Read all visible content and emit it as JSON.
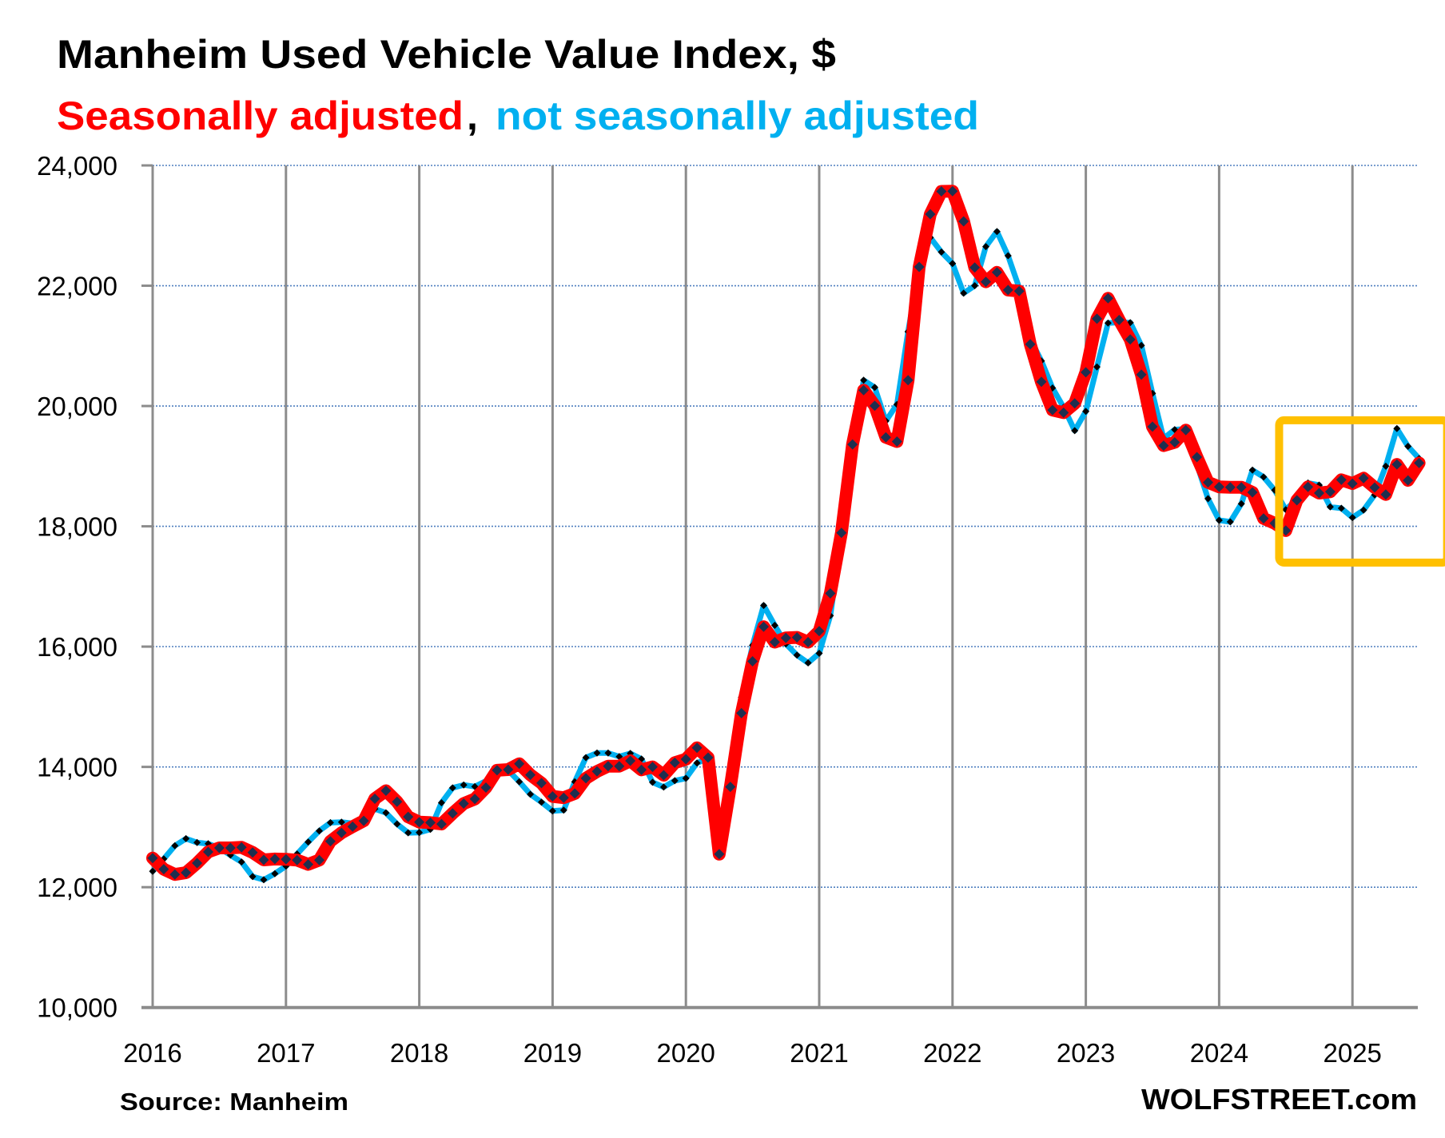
{
  "chart_data": {
    "type": "line",
    "title": "Manheim Used Vehicle Value Index, $",
    "subtitle": {
      "part1": "Seasonally adjusted",
      "separator": ",",
      "part2": "not seasonally adjusted"
    },
    "source": "Source: Manheim",
    "watermark": "WOLFSTREET.com",
    "xlabel": "",
    "ylabel": "",
    "ylim": [
      10000,
      24000
    ],
    "xlim": [
      2016,
      2025.6
    ],
    "y_ticks": [
      "10,000",
      "12,000",
      "14,000",
      "16,000",
      "18,000",
      "20,000",
      "22,000",
      "24,000"
    ],
    "y_tick_values": [
      10000,
      12000,
      14000,
      16000,
      18000,
      20000,
      22000,
      24000
    ],
    "x_ticks": [
      "2016",
      "2017",
      "2018",
      "2019",
      "2020",
      "2021",
      "2022",
      "2023",
      "2024",
      "2025"
    ],
    "grid": {
      "horizontal": true,
      "vertical_years": true
    },
    "legend": "none (series identified by subtitle colors)",
    "start": "2016-01",
    "frequency": "monthly",
    "series": [
      {
        "name": "Not seasonally adjusted",
        "color": "#00B0F0",
        "marker_color": "#000000",
        "values": [
          12265,
          12470,
          12689,
          12808,
          12742,
          12723,
          12653,
          12534,
          12419,
          12176,
          12123,
          12225,
          12350,
          12552,
          12751,
          12936,
          13073,
          13082,
          13060,
          13104,
          13302,
          13236,
          13050,
          12905,
          12910,
          12963,
          13404,
          13651,
          13700,
          13673,
          13766,
          13943,
          13943,
          13753,
          13545,
          13413,
          13267,
          13280,
          13753,
          14155,
          14230,
          14230,
          14172,
          14225,
          14132,
          13744,
          13665,
          13771,
          13810,
          14066,
          14142,
          12550,
          13668,
          15159,
          16022,
          16685,
          16353,
          16044,
          15858,
          15729,
          15889,
          16514,
          17800,
          19250,
          20429,
          20309,
          19751,
          20026,
          21236,
          22300,
          22800,
          22560,
          22370,
          21876,
          22000,
          22650,
          22901,
          22499,
          21964,
          21116,
          20750,
          20300,
          19979,
          19590,
          19911,
          20650,
          21378,
          21390,
          21387,
          21007,
          20211,
          19463,
          19607,
          19620,
          19030,
          18460,
          18101,
          18074,
          18375,
          18935,
          18820,
          18600,
          18278,
          18450,
          18720,
          18685,
          18323,
          18300,
          18146,
          18270,
          18522,
          18999,
          19625,
          19330,
          19126
        ]
      },
      {
        "name": "Seasonally adjusted",
        "color": "#FF0000",
        "marker_color": "#1F2F4F",
        "values": [
          12485,
          12300,
          12212,
          12242,
          12401,
          12587,
          12653,
          12653,
          12662,
          12578,
          12454,
          12468,
          12464,
          12450,
          12380,
          12451,
          12764,
          12905,
          13007,
          13104,
          13470,
          13603,
          13421,
          13170,
          13082,
          13073,
          13050,
          13227,
          13391,
          13466,
          13656,
          13943,
          13956,
          14053,
          13868,
          13731,
          13510,
          13488,
          13558,
          13810,
          13925,
          14013,
          14013,
          14101,
          13951,
          14000,
          13863,
          14070,
          14128,
          14318,
          14155,
          12550,
          13668,
          14893,
          15756,
          16330,
          16075,
          16145,
          16153,
          16075,
          16256,
          16885,
          17891,
          19362,
          20263,
          20003,
          19480,
          19410,
          20429,
          22312,
          23190,
          23568,
          23572,
          23070,
          22302,
          22066,
          22222,
          21928,
          21910,
          21027,
          20402,
          19933,
          19889,
          20045,
          20560,
          21450,
          21790,
          21430,
          21106,
          20523,
          19656,
          19342,
          19396,
          19600,
          19150,
          18730,
          18656,
          18650,
          18649,
          18564,
          18132,
          18050,
          17930,
          18433,
          18656,
          18553,
          18575,
          18773,
          18711,
          18800,
          18645,
          18530,
          19029,
          18764,
          19052
        ]
      }
    ],
    "annotations": [
      {
        "type": "highlight-box",
        "color": "#FFC000",
        "x_range": [
          2024.42,
          2025.74
        ],
        "y_range": [
          17330,
          19830
        ]
      }
    ]
  }
}
